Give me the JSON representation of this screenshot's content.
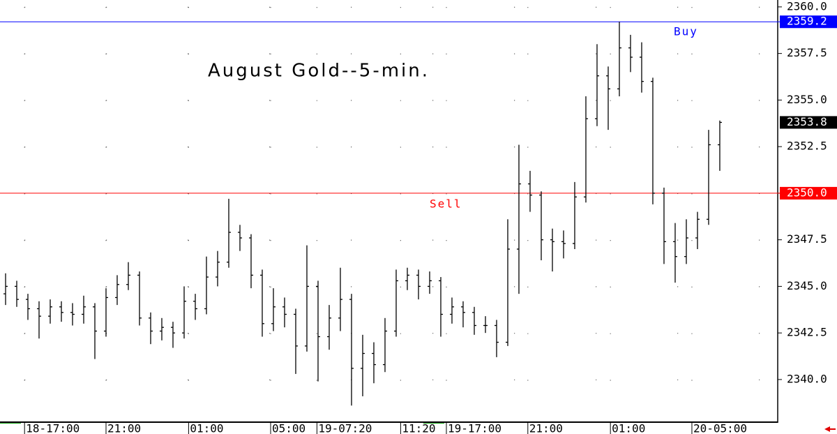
{
  "chart_data": {
    "type": "ohlc",
    "title": "August Gold--5-min.",
    "color": "#000000",
    "open": [
      2344.6,
      2345.0,
      2344.3,
      2343.8,
      2343.4,
      2343.9,
      2343.6,
      2343.5,
      2343.9,
      2342.6,
      2344.4,
      2345.1,
      2345.6,
      2343.3,
      2342.6,
      2342.8,
      2342.5,
      2344.2,
      2343.8,
      2345.5,
      2346.3,
      2347.9,
      2347.6,
      2345.6,
      2343.0,
      2343.9,
      2343.5,
      2341.8,
      2345.0,
      2342.3,
      2343.3,
      2344.3,
      2340.6,
      2341.4,
      2340.8,
      2342.6,
      2345.3,
      2345.6,
      2345.0,
      2345.3,
      2343.5,
      2343.9,
      2343.6,
      2342.9,
      2342.9,
      2342.0,
      2347.0,
      2350.5,
      2349.9,
      2347.5,
      2347.4,
      2347.3,
      2349.8,
      2354.0,
      2356.3,
      2355.6,
      2357.8,
      2357.3,
      2356.0,
      2350.0,
      2347.4,
      2346.6,
      2347.6,
      2348.6,
      2352.6
    ],
    "high": [
      2345.7,
      2345.3,
      2344.6,
      2344.2,
      2344.3,
      2344.2,
      2344.1,
      2344.5,
      2344.1,
      2344.9,
      2345.6,
      2346.3,
      2345.8,
      2343.6,
      2343.3,
      2343.1,
      2345.0,
      2344.6,
      2346.6,
      2346.9,
      2349.7,
      2348.3,
      2347.8,
      2345.9,
      2344.9,
      2344.4,
      2343.8,
      2347.2,
      2345.3,
      2344.0,
      2346.0,
      2344.6,
      2342.4,
      2342.0,
      2343.3,
      2345.9,
      2346.0,
      2345.9,
      2345.8,
      2345.5,
      2344.4,
      2344.2,
      2343.9,
      2343.4,
      2343.2,
      2348.6,
      2352.6,
      2351.2,
      2350.1,
      2348.1,
      2348.0,
      2350.6,
      2355.2,
      2358.0,
      2356.8,
      2359.2,
      2358.5,
      2358.1,
      2356.2,
      2350.3,
      2348.4,
      2348.6,
      2349.0,
      2353.4,
      2353.9
    ],
    "low": [
      2344.0,
      2343.9,
      2343.2,
      2342.2,
      2343.0,
      2343.1,
      2342.9,
      2343.0,
      2341.1,
      2342.3,
      2344.0,
      2344.8,
      2342.9,
      2341.9,
      2342.1,
      2341.7,
      2342.2,
      2343.2,
      2343.5,
      2345.0,
      2346.0,
      2346.9,
      2344.9,
      2342.3,
      2342.6,
      2342.8,
      2340.3,
      2341.5,
      2339.9,
      2341.6,
      2342.6,
      2338.6,
      2339.1,
      2339.8,
      2340.4,
      2342.3,
      2344.8,
      2344.3,
      2344.6,
      2342.3,
      2343.0,
      2342.8,
      2342.4,
      2342.5,
      2341.2,
      2341.8,
      2344.6,
      2349.0,
      2346.4,
      2345.8,
      2346.5,
      2347.0,
      2349.5,
      2353.6,
      2353.4,
      2355.2,
      2356.5,
      2355.4,
      2349.4,
      2346.2,
      2345.2,
      2346.2,
      2347.0,
      2348.3,
      2351.2
    ],
    "close": [
      2345.0,
      2344.3,
      2343.8,
      2343.4,
      2343.9,
      2343.6,
      2343.5,
      2343.9,
      2342.6,
      2344.4,
      2345.1,
      2345.6,
      2343.3,
      2342.6,
      2342.8,
      2342.5,
      2344.2,
      2343.8,
      2345.5,
      2346.3,
      2347.9,
      2347.6,
      2345.6,
      2343.0,
      2343.9,
      2343.5,
      2341.8,
      2345.0,
      2342.3,
      2343.3,
      2344.3,
      2340.6,
      2341.4,
      2340.8,
      2342.6,
      2345.3,
      2345.6,
      2345.0,
      2345.3,
      2343.5,
      2343.9,
      2343.6,
      2342.9,
      2342.9,
      2342.0,
      2347.0,
      2350.5,
      2349.9,
      2347.5,
      2347.4,
      2347.3,
      2349.8,
      2354.0,
      2356.3,
      2355.6,
      2357.8,
      2357.3,
      2356.0,
      2350.0,
      2347.4,
      2346.6,
      2347.6,
      2348.6,
      2352.6,
      2353.8
    ],
    "xlim": [
      -0.5,
      69.19
    ],
    "xticks": [
      {
        "value": 1.7,
        "label": "18-17:00"
      },
      {
        "value": 9,
        "label": "21:00"
      },
      {
        "value": 16.4,
        "label": "01:00"
      },
      {
        "value": 23.75,
        "label": "05:00"
      },
      {
        "value": 27.9,
        "label": "19-07:20"
      },
      {
        "value": 35.4,
        "label": "11:20"
      },
      {
        "value": 39.5,
        "label": "19-17:00"
      },
      {
        "value": 46.8,
        "label": "21:00"
      },
      {
        "value": 54.2,
        "label": "01:00"
      },
      {
        "value": 61.5,
        "label": "20-05:00"
      }
    ],
    "ylim": [
      2337.75,
      2360.37
    ],
    "yticks": [
      {
        "value": 2340,
        "label": "2340.0"
      },
      2342.5,
      {
        "value": 2345,
        "label": "2345.0"
      },
      2347.5,
      {
        "value": 2350,
        "label": "2350.0"
      },
      2352.5,
      {
        "value": 2355,
        "label": "2355.0"
      },
      2357.5,
      {
        "value": 2360,
        "label": "2360.0"
      }
    ],
    "grid": true,
    "levels": [
      {
        "name": "Buy",
        "value": 2359.2,
        "color": "#0000ff"
      },
      {
        "name": "Sell",
        "value": 2350,
        "value_label": "2350.0",
        "color": "#ff0000"
      }
    ]
  }
}
